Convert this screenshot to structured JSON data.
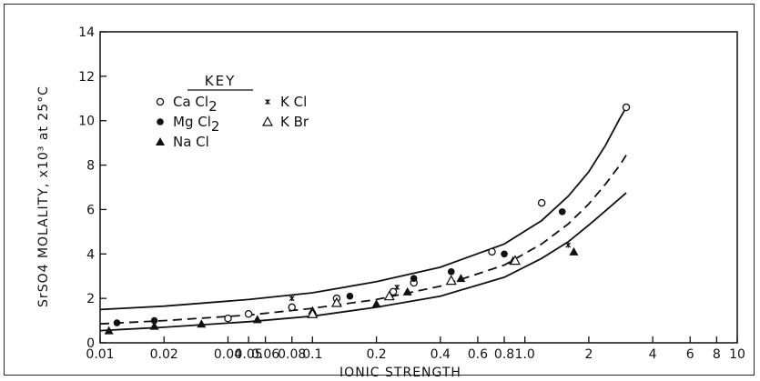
{
  "chart_data": {
    "type": "scatter",
    "xlabel": "IONIC STRENGTH",
    "ylabel": "SrSO4 MOLALITY, x10³ at 25°C",
    "xscale": "log",
    "xlim": [
      0.01,
      10
    ],
    "ylim": [
      0,
      14
    ],
    "x_tick_values": [
      0.01,
      0.02,
      0.04,
      0.05,
      0.06,
      0.08,
      0.1,
      0.2,
      0.4,
      0.6,
      0.8,
      1.0,
      2,
      4,
      6,
      8,
      10
    ],
    "x_tick_labels": [
      "0.01",
      "0.02",
      "0.04",
      "0.05",
      "0.06",
      "0.08",
      "0.1",
      "0.2",
      "0.4",
      "0.6",
      "0.8",
      "1.0",
      "2",
      "4",
      "6",
      "8",
      "10"
    ],
    "y_ticks": [
      0,
      2,
      4,
      6,
      8,
      10,
      12,
      14
    ],
    "grid": false,
    "legend_position": "top-left",
    "legend_title": "KEY",
    "curves": [
      {
        "style": "solid",
        "x": [
          0.01,
          0.02,
          0.05,
          0.1,
          0.2,
          0.4,
          0.8,
          1.2,
          1.6,
          2.0,
          2.4,
          2.8,
          3.0
        ],
        "y": [
          1.5,
          1.65,
          1.95,
          2.25,
          2.75,
          3.4,
          4.45,
          5.5,
          6.6,
          7.7,
          8.9,
          10.1,
          10.6
        ]
      },
      {
        "style": "dashed",
        "x": [
          0.01,
          0.02,
          0.05,
          0.1,
          0.2,
          0.4,
          0.8,
          1.2,
          1.6,
          2.0,
          2.4,
          2.8,
          3.0
        ],
        "y": [
          0.85,
          1.0,
          1.25,
          1.55,
          1.95,
          2.55,
          3.5,
          4.45,
          5.35,
          6.25,
          7.15,
          8.0,
          8.45
        ]
      },
      {
        "style": "solid",
        "x": [
          0.01,
          0.02,
          0.05,
          0.1,
          0.2,
          0.4,
          0.8,
          1.2,
          1.6,
          2.0,
          2.4,
          2.8,
          3.0
        ],
        "y": [
          0.55,
          0.7,
          0.95,
          1.2,
          1.6,
          2.1,
          2.95,
          3.8,
          4.55,
          5.3,
          5.95,
          6.5,
          6.75
        ]
      }
    ],
    "series": [
      {
        "name": "CaCl2",
        "marker": "open-circle",
        "points": [
          [
            0.04,
            1.1
          ],
          [
            0.05,
            1.3
          ],
          [
            0.08,
            1.6
          ],
          [
            0.13,
            2.0
          ],
          [
            0.24,
            2.3
          ],
          [
            0.3,
            2.7
          ],
          [
            0.7,
            4.1
          ],
          [
            1.2,
            6.3
          ],
          [
            3.0,
            10.6
          ]
        ]
      },
      {
        "name": "MgCl2",
        "marker": "filled-circle",
        "points": [
          [
            0.012,
            0.9
          ],
          [
            0.018,
            1.0
          ],
          [
            0.15,
            2.1
          ],
          [
            0.3,
            2.9
          ],
          [
            0.45,
            3.2
          ],
          [
            0.8,
            4.0
          ],
          [
            1.5,
            5.9
          ]
        ]
      },
      {
        "name": "NaCl",
        "marker": "filled-triangle",
        "points": [
          [
            0.011,
            0.55
          ],
          [
            0.018,
            0.75
          ],
          [
            0.03,
            0.85
          ],
          [
            0.055,
            1.05
          ],
          [
            0.1,
            1.45
          ],
          [
            0.2,
            1.75
          ],
          [
            0.28,
            2.3
          ],
          [
            0.5,
            2.9
          ],
          [
            0.88,
            3.7
          ],
          [
            1.7,
            4.1
          ]
        ]
      },
      {
        "name": "KCl",
        "marker": "asterisk",
        "points": [
          [
            0.08,
            2.0
          ],
          [
            0.25,
            2.5
          ],
          [
            1.6,
            4.4
          ]
        ]
      },
      {
        "name": "KBr",
        "marker": "open-triangle",
        "points": [
          [
            0.1,
            1.3
          ],
          [
            0.13,
            1.8
          ],
          [
            0.23,
            2.1
          ],
          [
            0.45,
            2.8
          ],
          [
            0.9,
            3.7
          ]
        ]
      }
    ],
    "key_labels": [
      {
        "main": "Ca Cl",
        "sub": "2"
      },
      {
        "main": "Mg Cl",
        "sub": "2"
      },
      {
        "main": "Na Cl",
        "sub": ""
      },
      {
        "main": "K Cl",
        "sub": ""
      },
      {
        "main": "K Br",
        "sub": ""
      }
    ]
  }
}
